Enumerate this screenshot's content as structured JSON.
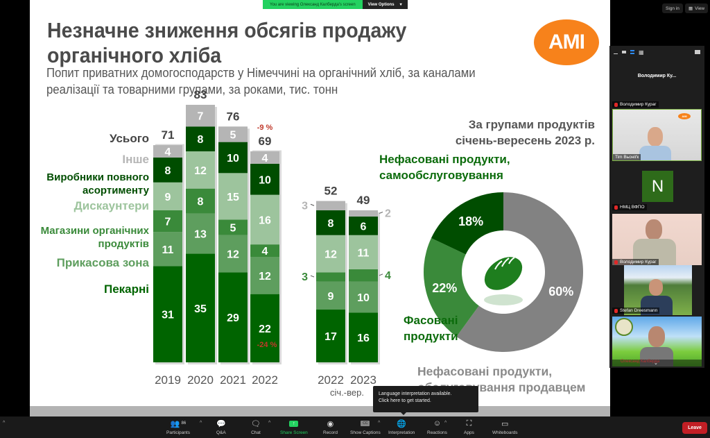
{
  "zoom": {
    "share_banner": "You are viewing Олександ Калберда's screen",
    "view_options": "View Options",
    "sign_in": "Sign in",
    "view": "View",
    "gallery": {
      "speaker_name": "Володимир  Ку...",
      "tiles": [
        {
          "top_label": "Володимир Кураг",
          "name": "Tim Bьоніґк"
        },
        {
          "initial": "N",
          "name": "НМЦ ВФПО"
        },
        {
          "name": "Володимир Кураг"
        },
        {
          "name": "Stefan Dreesmann"
        },
        {
          "name": "Олександ Калберда"
        }
      ]
    },
    "toolbar": {
      "participants_count": "86",
      "items": [
        "Participants",
        "Q&A",
        "Chat",
        "Share Screen",
        "Record",
        "Show Captions",
        "Interpretation",
        "Reactions",
        "Apps",
        "Whiteboards"
      ],
      "leave": "Leave"
    },
    "tooltip": {
      "line1": "Language interpretation available.",
      "line2": "Click here to get started."
    }
  },
  "slide": {
    "title_line1": "Незначне зниження обсягів продажу",
    "title_line2": "органічного хліба",
    "subtitle_line1": "Попит приватних домогосподарств у Німеччині на органічний хліб, за каналами",
    "subtitle_line2": "реалізації та товарними групами, за роками, тис. тонн",
    "logo": "AMI",
    "legend": {
      "total": "Усього",
      "other": "Інше",
      "full_range_line1": "Виробники повного",
      "full_range_line2": "асортименту",
      "discounters": "Дискаунтери",
      "organic_line1": "Магазини органічних",
      "organic_line2": "продуктів",
      "checkout": "Прикасова зона",
      "bakeries": "Пекарні"
    },
    "change_total": "-9 %",
    "change_bakeries": "-24 %",
    "period_note": "січ.-вер.",
    "pie": {
      "title_line1": "За групами продуктів",
      "title_line2": "січень-вересень 2023 р.",
      "label_self_line1": "Нефасовані продукти,",
      "label_self_line2": "самообслуговування",
      "label_packed_line1": "Фасовані",
      "label_packed_line2": "продукти",
      "label_served_line1": "Нефасовані продукти,",
      "label_served_line2": "обслуговування продавцем"
    }
  },
  "chart_data": [
    {
      "type": "bar",
      "stacked": true,
      "title": "",
      "categories": [
        "2019",
        "2020",
        "2021",
        "2022"
      ],
      "totals": [
        71,
        83,
        76,
        69
      ],
      "series": [
        {
          "name": "Пекарні",
          "color": "#006400",
          "values": [
            31,
            35,
            29,
            22
          ]
        },
        {
          "name": "Прикасова зона",
          "color": "#5e9e5e",
          "values": [
            11,
            13,
            12,
            12
          ]
        },
        {
          "name": "Магазини органічних продуктів",
          "color": "#3a8a3a",
          "values": [
            7,
            8,
            5,
            4
          ]
        },
        {
          "name": "Дискаунтери",
          "color": "#9dc49d",
          "values": [
            9,
            12,
            15,
            16
          ]
        },
        {
          "name": "Виробники повного асортименту",
          "color": "#004d00",
          "values": [
            8,
            8,
            10,
            10
          ]
        },
        {
          "name": "Інше",
          "color": "#b5b5b5",
          "values": [
            4,
            7,
            5,
            4
          ]
        }
      ],
      "annotations": [
        "-9 %",
        "-24 %"
      ]
    },
    {
      "type": "bar",
      "stacked": true,
      "categories": [
        "2022",
        "2023"
      ],
      "subtitle": "січ.-вер.",
      "totals": [
        52,
        49
      ],
      "series": [
        {
          "name": "Пекарні",
          "color": "#006400",
          "values": [
            17,
            16
          ]
        },
        {
          "name": "Прикасова зона",
          "color": "#5e9e5e",
          "values": [
            9,
            10
          ]
        },
        {
          "name": "Магазини органічних продуктів",
          "color": "#3a8a3a",
          "values": [
            3,
            4
          ]
        },
        {
          "name": "Дискаунтери",
          "color": "#9dc49d",
          "values": [
            12,
            11
          ]
        },
        {
          "name": "Виробники повного асортименту",
          "color": "#004d00",
          "values": [
            8,
            6
          ]
        },
        {
          "name": "Інше",
          "color": "#b5b5b5",
          "values": [
            3,
            2
          ]
        }
      ]
    },
    {
      "type": "pie",
      "donut": true,
      "title": "За групами продуктів січень-вересень 2023 р.",
      "slices": [
        {
          "name": "Нефасовані продукти, обслуговування продавцем",
          "value": 60,
          "label": "60%",
          "color": "#828282"
        },
        {
          "name": "Фасовані продукти",
          "value": 22,
          "label": "22%",
          "color": "#3a8a3a"
        },
        {
          "name": "Нефасовані продукти, самообслуговування",
          "value": 18,
          "label": "18%",
          "color": "#004d00"
        }
      ]
    }
  ]
}
